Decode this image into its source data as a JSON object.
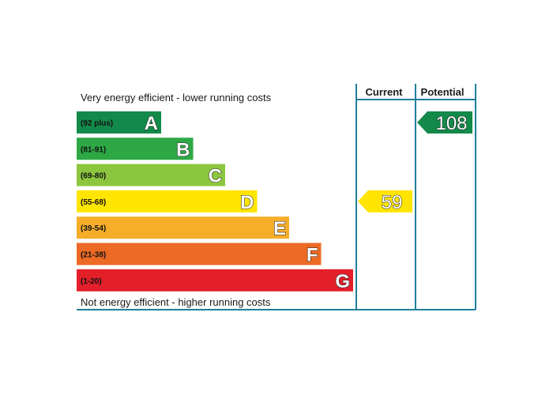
{
  "chart_data": {
    "type": "bar",
    "top_text": "Very energy efficient - lower running costs",
    "bottom_text": "Not energy efficient - higher running costs",
    "columns": [
      "Current",
      "Potential"
    ],
    "bands": [
      {
        "letter": "A",
        "range": "(92 plus)",
        "min": 92,
        "max": 120,
        "color": "#138a4a"
      },
      {
        "letter": "B",
        "range": "(81-91)",
        "min": 81,
        "max": 91,
        "color": "#2da845"
      },
      {
        "letter": "C",
        "range": "(69-80)",
        "min": 69,
        "max": 80,
        "color": "#8cc63f"
      },
      {
        "letter": "D",
        "range": "(55-68)",
        "min": 55,
        "max": 68,
        "color": "#ffe500"
      },
      {
        "letter": "E",
        "range": "(39-54)",
        "min": 39,
        "max": 54,
        "color": "#f5ad2a"
      },
      {
        "letter": "F",
        "range": "(21-38)",
        "min": 21,
        "max": 38,
        "color": "#ec6a24"
      },
      {
        "letter": "G",
        "range": "(1-20)",
        "min": 1,
        "max": 20,
        "color": "#e3202a"
      }
    ],
    "ratings": [
      {
        "column": "Current",
        "value": 59,
        "band": "D",
        "color": "#ffe500"
      },
      {
        "column": "Potential",
        "value": 108,
        "band": "A",
        "color": "#138a4a"
      }
    ],
    "line_color": "#1f7f9a"
  }
}
